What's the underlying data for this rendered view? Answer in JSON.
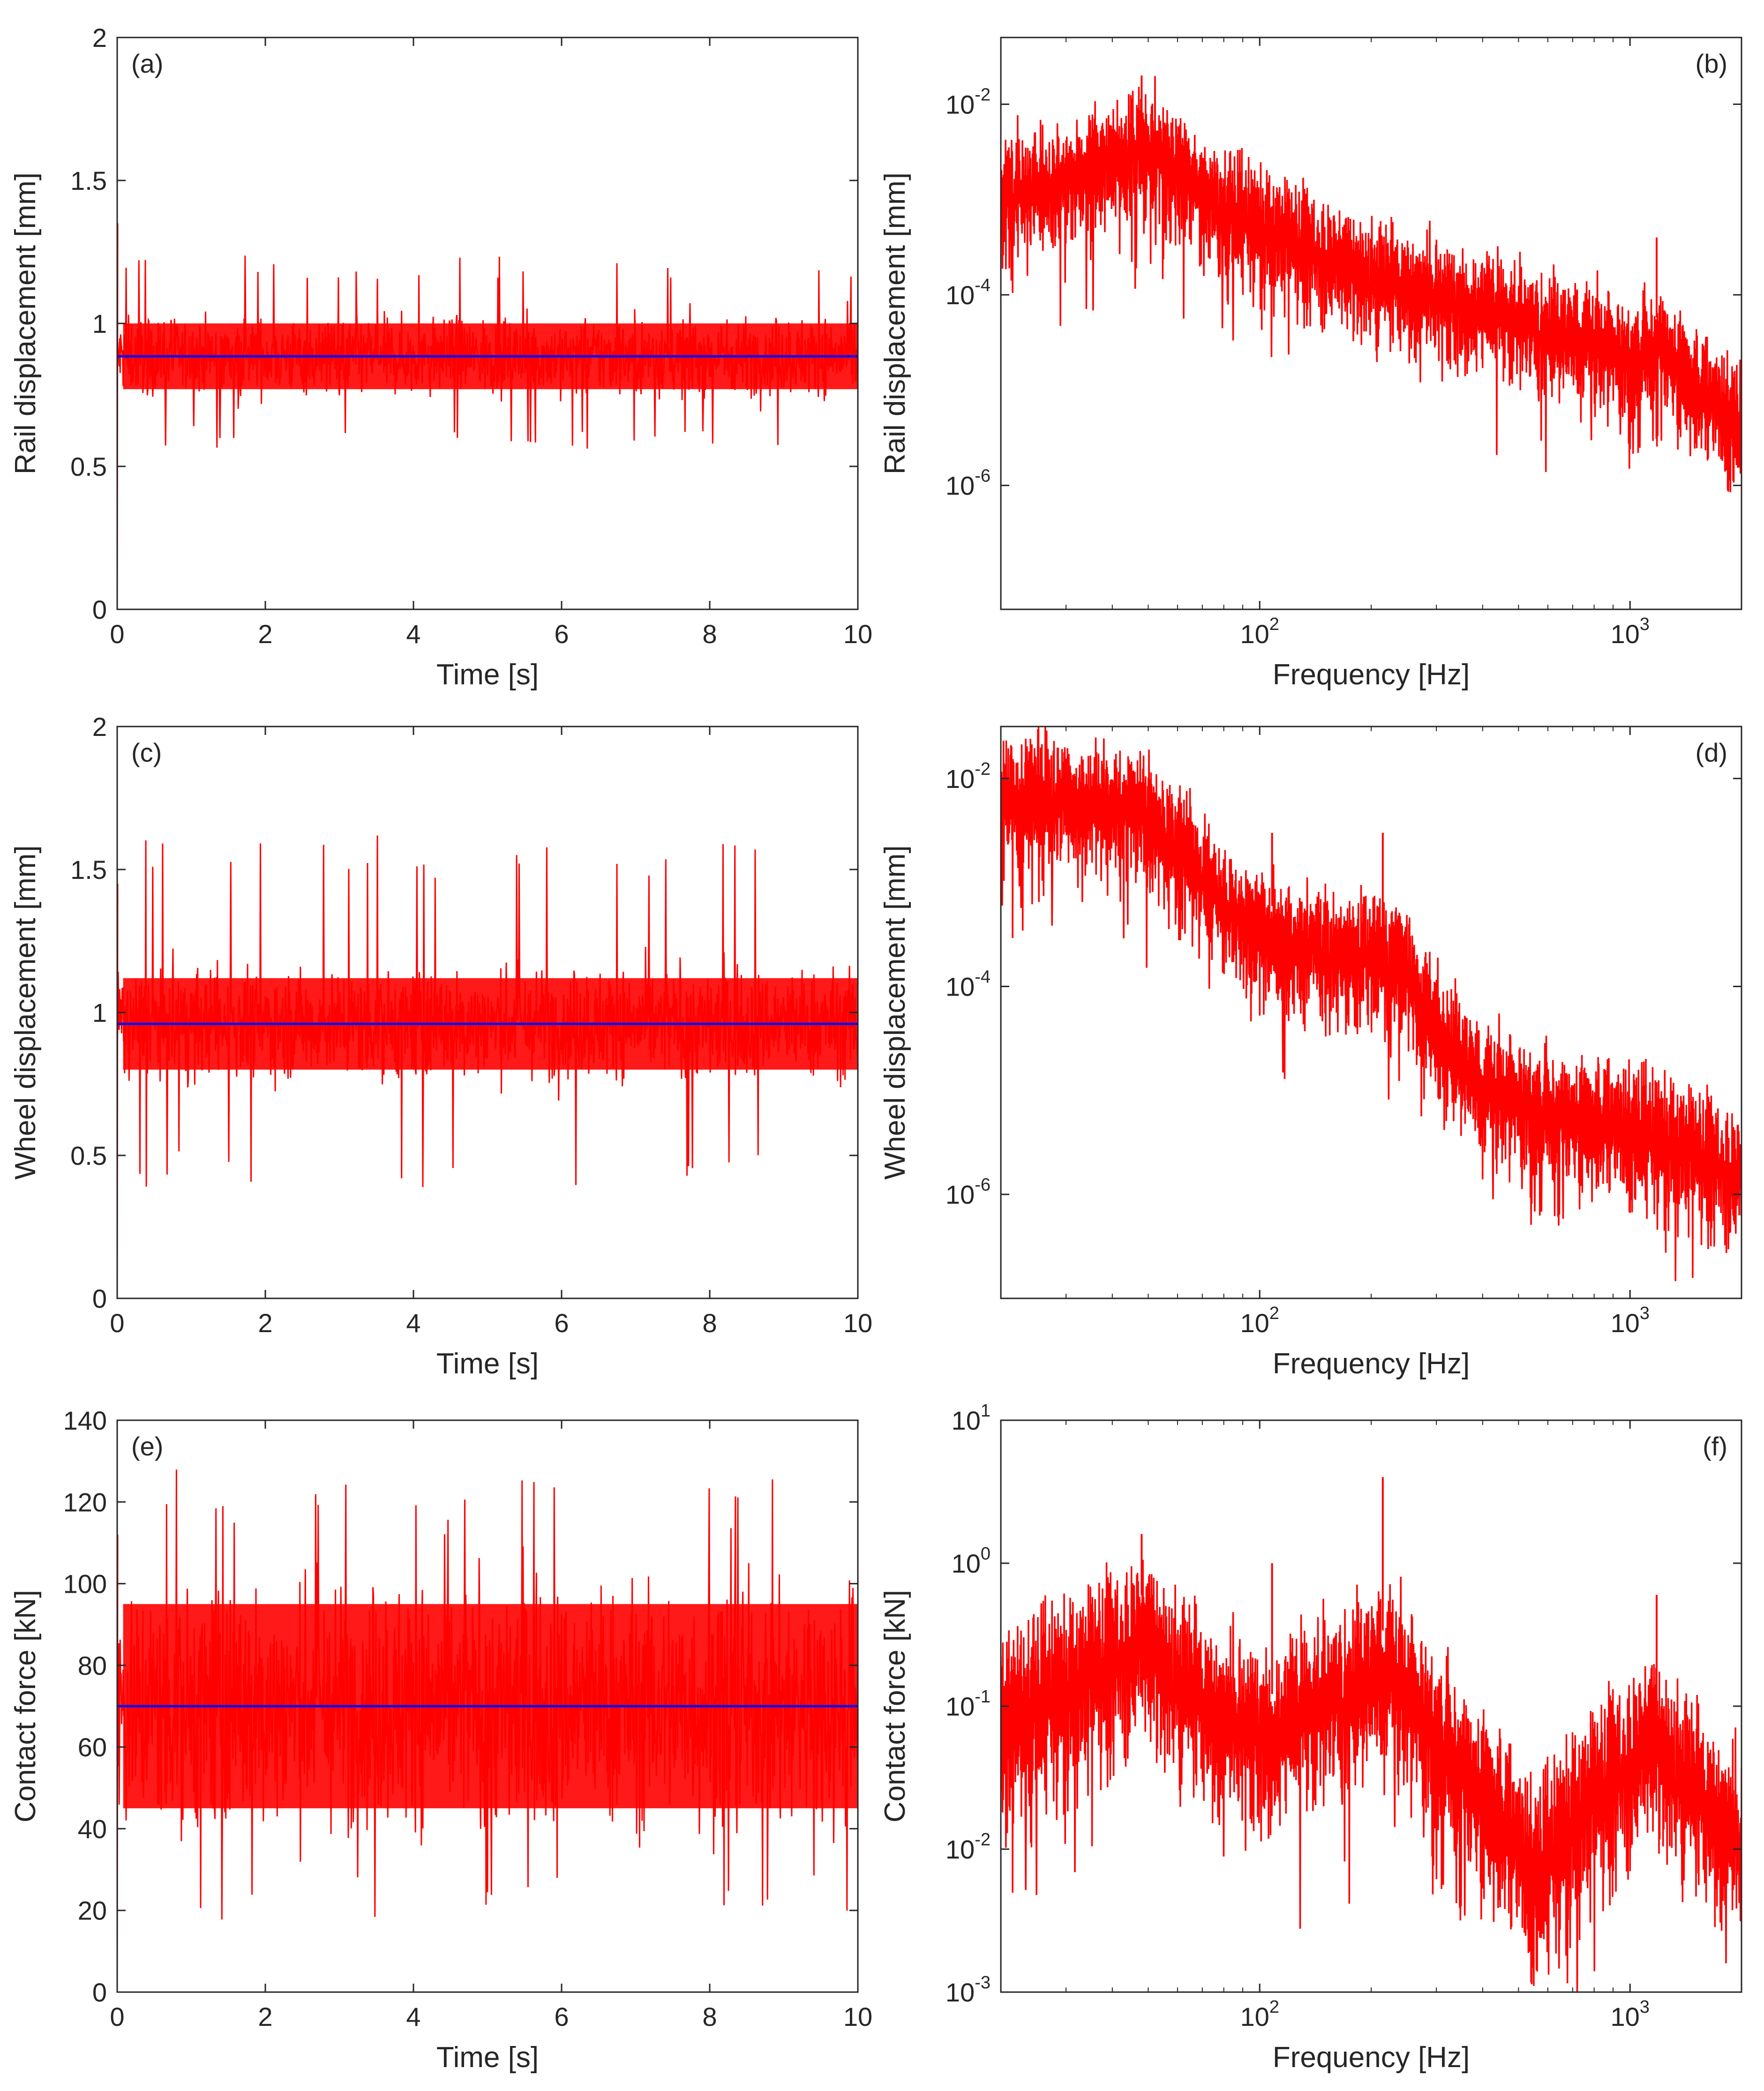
{
  "figure": {
    "series_colors": {
      "signal": "#ff0000",
      "mean": "#0000ff"
    }
  },
  "chart_data": [
    {
      "id": "a",
      "tag": "(a)",
      "type": "line",
      "scale": "linear",
      "xlabel": "Time [s]",
      "ylabel": "Rail displacement [mm]",
      "xlim": [
        0,
        10
      ],
      "ylim": [
        0,
        2
      ],
      "xticks": [
        0,
        2,
        4,
        6,
        8,
        10
      ],
      "xtick_labels": [
        "0",
        "2",
        "4",
        "6",
        "8",
        "10"
      ],
      "yticks": [
        0,
        0.5,
        1,
        1.5,
        2
      ],
      "ytick_labels": [
        "0",
        "0.5",
        "1",
        "1.5",
        "2"
      ],
      "series": [
        {
          "name": "signal",
          "color": "#ff0000",
          "mean": 0.885,
          "band_low": 0.77,
          "band_high": 1.0,
          "spike_low": 0.56,
          "spike_high": 1.24,
          "start_spike": 1.35
        },
        {
          "name": "mean",
          "color": "#0000ff",
          "value": 0.885
        }
      ]
    },
    {
      "id": "b",
      "tag": "(b)",
      "type": "line",
      "scale": "loglog",
      "xlabel": "Frequency [Hz]",
      "ylabel": "Rail displacement [mm]",
      "xlim": [
        20,
        2000
      ],
      "ylim_exp": [
        -7.3,
        -1.3
      ],
      "xticks": [
        100,
        1000
      ],
      "xtick_labels": [
        {
          "base": "10",
          "exp": "2"
        },
        {
          "base": "10",
          "exp": "3"
        }
      ],
      "yticks": [
        1e-06,
        0.0001,
        0.01
      ],
      "ytick_labels": [
        {
          "base": "10",
          "exp": "-6"
        },
        {
          "base": "10",
          "exp": "-4"
        },
        {
          "base": "10",
          "exp": "-2"
        }
      ],
      "series": [
        {
          "name": "spectrum",
          "color": "#ff0000",
          "envelope": [
            [
              20,
              0.002
            ],
            [
              30,
              0.003
            ],
            [
              40,
              0.005
            ],
            [
              48,
              0.008
            ],
            [
              55,
              0.005
            ],
            [
              70,
              0.002
            ],
            [
              100,
              0.001
            ],
            [
              150,
              0.0005
            ],
            [
              200,
              0.0003
            ],
            [
              300,
              0.00018
            ],
            [
              500,
              0.0001
            ],
            [
              800,
              6e-05
            ],
            [
              1000,
              4e-05
            ],
            [
              1200,
              6e-05
            ],
            [
              1500,
              2e-05
            ],
            [
              2000,
              8e-06
            ]
          ],
          "peaks": [
            [
              48,
              0.02
            ],
            [
              1180,
              0.0004
            ]
          ]
        }
      ]
    },
    {
      "id": "c",
      "tag": "(c)",
      "type": "line",
      "scale": "linear",
      "xlabel": "Time [s]",
      "ylabel": "Wheel displacement [mm]",
      "xlim": [
        0,
        10
      ],
      "ylim": [
        0,
        2
      ],
      "xticks": [
        0,
        2,
        4,
        6,
        8,
        10
      ],
      "xtick_labels": [
        "0",
        "2",
        "4",
        "6",
        "8",
        "10"
      ],
      "yticks": [
        0,
        0.5,
        1,
        1.5,
        2
      ],
      "ytick_labels": [
        "0",
        "0.5",
        "1",
        "1.5",
        "2"
      ],
      "series": [
        {
          "name": "signal",
          "color": "#ff0000",
          "mean": 0.96,
          "band_low": 0.8,
          "band_high": 1.12,
          "spike_low": 0.37,
          "spike_high": 1.62,
          "start_spike": 1.45
        },
        {
          "name": "mean",
          "color": "#0000ff",
          "value": 0.96
        }
      ]
    },
    {
      "id": "d",
      "tag": "(d)",
      "type": "line",
      "scale": "loglog",
      "xlabel": "Frequency [Hz]",
      "ylabel": "Wheel displacement [mm]",
      "xlim": [
        20,
        2000
      ],
      "ylim_exp": [
        -7.0,
        -1.5
      ],
      "xticks": [
        100,
        1000
      ],
      "xtick_labels": [
        {
          "base": "10",
          "exp": "2"
        },
        {
          "base": "10",
          "exp": "3"
        }
      ],
      "yticks": [
        1e-06,
        0.0001,
        0.01
      ],
      "ytick_labels": [
        {
          "base": "10",
          "exp": "-6"
        },
        {
          "base": "10",
          "exp": "-4"
        },
        {
          "base": "10",
          "exp": "-2"
        }
      ],
      "series": [
        {
          "name": "spectrum",
          "color": "#ff0000",
          "envelope": [
            [
              20,
              0.012
            ],
            [
              30,
              0.012
            ],
            [
              45,
              0.01
            ],
            [
              55,
              0.006
            ],
            [
              70,
              0.002
            ],
            [
              90,
              0.0008
            ],
            [
              120,
              0.0005
            ],
            [
              180,
              0.0004
            ],
            [
              230,
              0.0004
            ],
            [
              300,
              8e-05
            ],
            [
              400,
              2e-05
            ],
            [
              600,
              1.2e-05
            ],
            [
              1000,
              8e-06
            ],
            [
              1300,
              6e-06
            ],
            [
              2000,
              3e-06
            ]
          ],
          "peaks": [
            [
              108,
              0.003
            ],
            [
              215,
              0.003
            ],
            [
              1180,
              1.2e-05
            ]
          ]
        }
      ]
    },
    {
      "id": "e",
      "tag": "(e)",
      "type": "line",
      "scale": "linear",
      "xlabel": "Time [s]",
      "ylabel": "Contact force [kN]",
      "xlim": [
        0,
        10
      ],
      "ylim": [
        0,
        140
      ],
      "xticks": [
        0,
        2,
        4,
        6,
        8,
        10
      ],
      "xtick_labels": [
        "0",
        "2",
        "4",
        "6",
        "8",
        "10"
      ],
      "yticks": [
        0,
        20,
        40,
        60,
        80,
        100,
        120,
        140
      ],
      "ytick_labels": [
        "0",
        "20",
        "40",
        "60",
        "80",
        "100",
        "120",
        "140"
      ],
      "series": [
        {
          "name": "signal",
          "color": "#ff0000",
          "mean": 70,
          "band_low": 45,
          "band_high": 95,
          "spike_low": 16,
          "spike_high": 128,
          "start_spike": 112
        },
        {
          "name": "mean",
          "color": "#0000ff",
          "value": 70
        }
      ]
    },
    {
      "id": "f",
      "tag": "(f)",
      "type": "line",
      "scale": "loglog",
      "xlabel": "Frequency [Hz]",
      "ylabel": "Contact force [kN]",
      "xlim": [
        20,
        2000
      ],
      "ylim_exp": [
        -3,
        1
      ],
      "xticks": [
        100,
        1000
      ],
      "xtick_labels": [
        {
          "base": "10",
          "exp": "2"
        },
        {
          "base": "10",
          "exp": "3"
        }
      ],
      "yticks": [
        0.001,
        0.01,
        0.1,
        1,
        10
      ],
      "ytick_labels": [
        {
          "base": "10",
          "exp": "-3"
        },
        {
          "base": "10",
          "exp": "-2"
        },
        {
          "base": "10",
          "exp": "-1"
        },
        {
          "base": "10",
          "exp": "0"
        },
        {
          "base": "10",
          "exp": "1"
        }
      ],
      "series": [
        {
          "name": "spectrum",
          "color": "#ff0000",
          "envelope": [
            [
              20,
              0.15
            ],
            [
              30,
              0.25
            ],
            [
              40,
              0.4
            ],
            [
              48,
              0.6
            ],
            [
              60,
              0.3
            ],
            [
              80,
              0.15
            ],
            [
              110,
              0.12
            ],
            [
              150,
              0.2
            ],
            [
              220,
              0.35
            ],
            [
              300,
              0.12
            ],
            [
              450,
              0.03
            ],
            [
              560,
              0.012
            ],
            [
              700,
              0.03
            ],
            [
              900,
              0.06
            ],
            [
              1150,
              0.12
            ],
            [
              1400,
              0.06
            ],
            [
              2000,
              0.02
            ]
          ],
          "peaks": [
            [
              48,
              1.6
            ],
            [
              108,
              1.0
            ],
            [
              215,
              4.0
            ],
            [
              1180,
              0.6
            ]
          ]
        }
      ]
    }
  ]
}
